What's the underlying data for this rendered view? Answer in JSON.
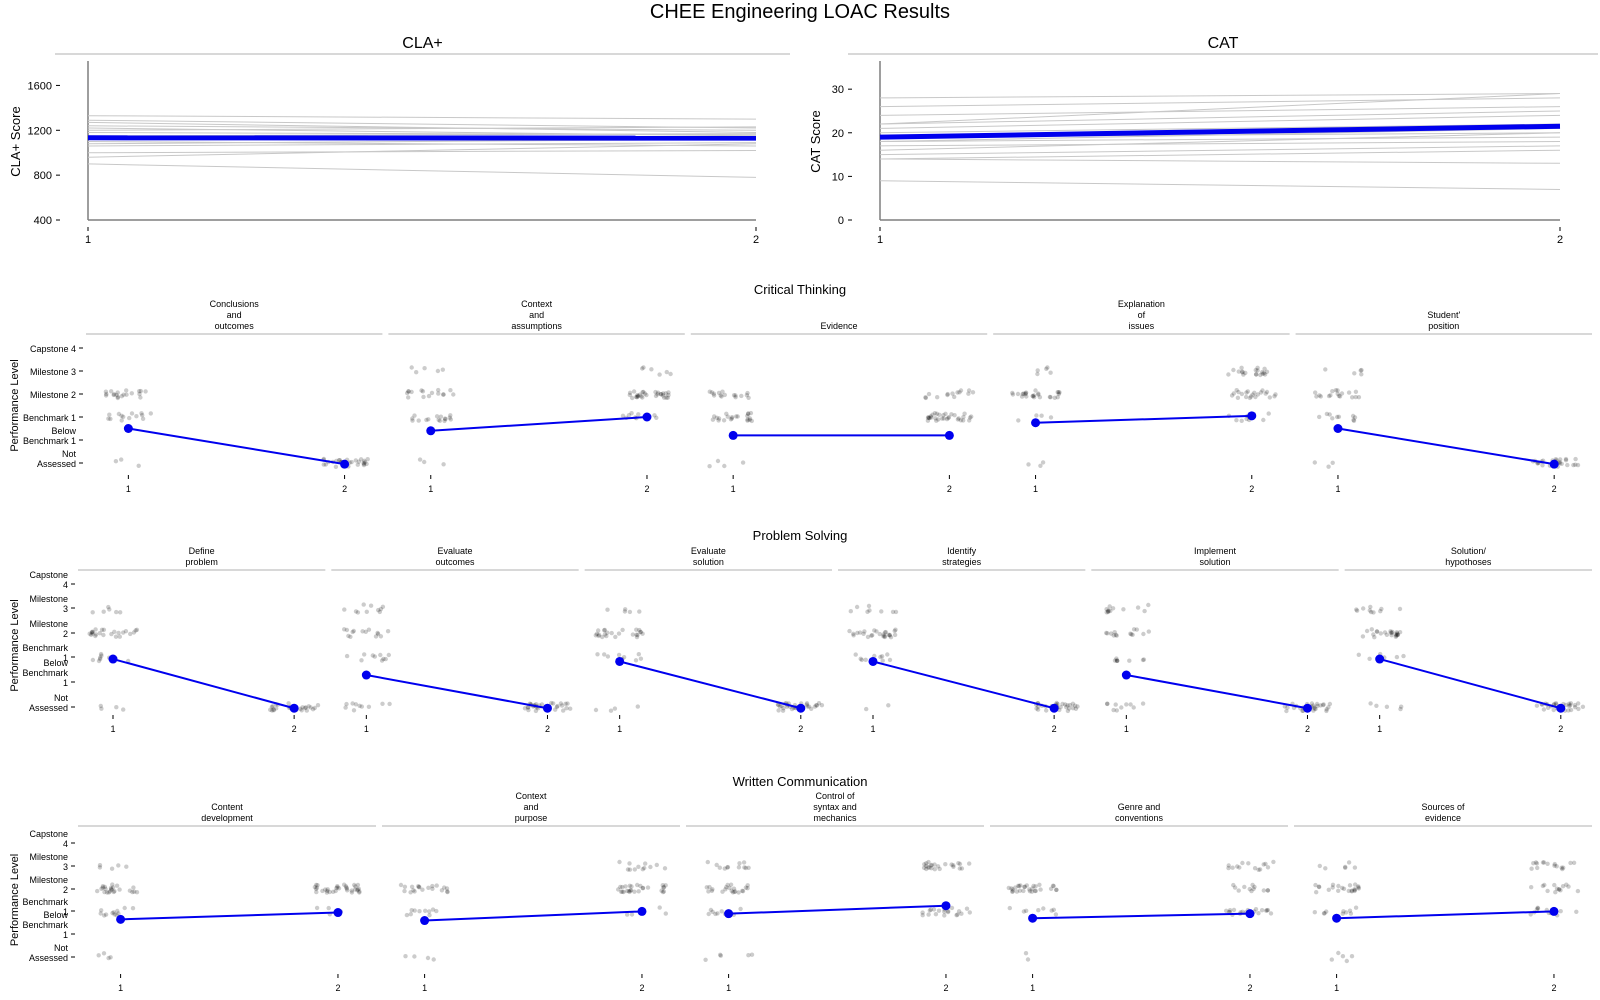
{
  "title": "CHEE Engineering LOAC Results",
  "colors": {
    "mean": "#0000ee",
    "individual": "#c8c8c8",
    "point": "#000000",
    "strip": "#b3b3b3",
    "axis": "#7f7f7f"
  },
  "chart_data": [
    {
      "type": "line",
      "title": "CLA+",
      "ylabel": "CLA+ Score",
      "x": [
        1,
        2
      ],
      "ylim": [
        400,
        1800
      ],
      "yticks": [
        400,
        800,
        1200,
        1600
      ],
      "series": [
        {
          "role": "mean",
          "values": [
            1133,
            1130
          ]
        },
        {
          "role": "individual",
          "lines": [
            [
              1330,
              1300
            ],
            [
              1290,
              1220
            ],
            [
              1270,
              1180
            ],
            [
              1240,
              1200
            ],
            [
              1220,
              1150
            ],
            [
              1200,
              1230
            ],
            [
              1180,
              1160
            ],
            [
              1150,
              1170
            ],
            [
              1120,
              1140
            ],
            [
              1100,
              1060
            ],
            [
              1080,
              1120
            ],
            [
              1060,
              1090
            ],
            [
              1000,
              1020
            ],
            [
              960,
              1080
            ],
            [
              900,
              780
            ]
          ]
        }
      ]
    },
    {
      "type": "line",
      "title": "CAT",
      "ylabel": "CAT Score",
      "x": [
        1,
        2
      ],
      "ylim": [
        0,
        36
      ],
      "yticks": [
        0,
        10,
        20,
        30
      ],
      "series": [
        {
          "role": "mean",
          "values": [
            19,
            21.5
          ]
        },
        {
          "role": "individual",
          "lines": [
            [
              28,
              29
            ],
            [
              26,
              28
            ],
            [
              24,
              26
            ],
            [
              22,
              29
            ],
            [
              22,
              25
            ],
            [
              21,
              24
            ],
            [
              20,
              22
            ],
            [
              19,
              20
            ],
            [
              18,
              19
            ],
            [
              18,
              21
            ],
            [
              17,
              18
            ],
            [
              16,
              20
            ],
            [
              15,
              17
            ],
            [
              14,
              13
            ],
            [
              14,
              16
            ],
            [
              9,
              7
            ]
          ]
        }
      ]
    },
    {
      "type": "scatter",
      "title": "Critical Thinking",
      "ylabel": "Performance Level",
      "x": [
        1,
        2
      ],
      "levels": [
        "Not Assessed",
        "Below Benchmark 1",
        "Benchmark 1",
        "Milestone 2",
        "Milestone 3",
        "Capstone 4"
      ],
      "ytick_labels": [
        [
          "Capstone 4"
        ],
        [
          "Milestone 3"
        ],
        [
          "Milestone 2"
        ],
        [
          "Benchmark 1"
        ],
        [
          "Below",
          "Benchmark 1"
        ],
        [
          "Not",
          "Assessed"
        ]
      ],
      "panels": [
        {
          "title": [
            "Conclusions",
            "and",
            "outcomes"
          ],
          "mean": [
            1.5,
            -0.05
          ],
          "counts": [
            {
              "na": 3,
              "b1": 14,
              "m2": 20,
              "m3": 0
            },
            {
              "na": 30,
              "b1": 0,
              "m2": 0,
              "m3": 0
            }
          ]
        },
        {
          "title": [
            "Context",
            "and",
            "assumptions"
          ],
          "mean": [
            1.4,
            2.0
          ],
          "counts": [
            {
              "na": 3,
              "b1": 16,
              "m2": 16,
              "m3": 5
            },
            {
              "na": 0,
              "b1": 10,
              "m2": 30,
              "m3": 6
            }
          ]
        },
        {
          "title": [
            "Evidence"
          ],
          "mean": [
            1.2,
            1.2
          ],
          "counts": [
            {
              "na": 4,
              "b1": 22,
              "m2": 16,
              "m3": 0
            },
            {
              "na": 0,
              "b1": 32,
              "m2": 14,
              "m3": 0
            }
          ]
        },
        {
          "title": [
            "Explanation",
            "of",
            "issues"
          ],
          "mean": [
            1.75,
            2.05
          ],
          "counts": [
            {
              "na": 3,
              "b1": 4,
              "m2": 26,
              "m3": 5
            },
            {
              "na": 0,
              "b1": 10,
              "m2": 22,
              "m3": 20
            }
          ]
        },
        {
          "title": [
            "Student'",
            "position"
          ],
          "mean": [
            1.5,
            -0.05
          ],
          "counts": [
            {
              "na": 3,
              "b1": 10,
              "m2": 18,
              "m3": 5
            },
            {
              "na": 30,
              "b1": 0,
              "m2": 0,
              "m3": 0
            }
          ]
        }
      ]
    },
    {
      "type": "scatter",
      "title": "Problem Solving",
      "ylabel": "Performance Level",
      "x": [
        1,
        2
      ],
      "levels": [
        "Not Assessed",
        "Below Benchmark 1",
        "Benchmark 1",
        "Milestone 2",
        "Milestone 3",
        "Capstone 4"
      ],
      "ytick_labels": [
        [
          "Capstone",
          "4"
        ],
        [
          "Milestone",
          "3"
        ],
        [
          "Milestone",
          "2"
        ],
        [
          "Benchmark",
          "1"
        ],
        [
          "Below",
          "Benchmark",
          "1"
        ],
        [
          "Not",
          "Assessed"
        ]
      ],
      "panels": [
        {
          "title": [
            "Define",
            "problem"
          ],
          "mean": [
            1.95,
            -0.05
          ],
          "counts": [
            {
              "na": 4,
              "b1": 8,
              "m2": 24,
              "m3": 6
            },
            {
              "na": 30,
              "b1": 0,
              "m2": 0,
              "m3": 0
            }
          ]
        },
        {
          "title": [
            "Evaluate",
            "outcomes"
          ],
          "mean": [
            1.3,
            -0.05
          ],
          "counts": [
            {
              "na": 10,
              "b1": 10,
              "m2": 14,
              "m3": 10
            },
            {
              "na": 30,
              "b1": 0,
              "m2": 0,
              "m3": 0
            }
          ]
        },
        {
          "title": [
            "Evaluate",
            "solution"
          ],
          "mean": [
            1.85,
            -0.05
          ],
          "counts": [
            {
              "na": 4,
              "b1": 10,
              "m2": 24,
              "m3": 5
            },
            {
              "na": 30,
              "b1": 0,
              "m2": 0,
              "m3": 0
            }
          ]
        },
        {
          "title": [
            "Identify",
            "strategies"
          ],
          "mean": [
            1.85,
            -0.05
          ],
          "counts": [
            {
              "na": 2,
              "b1": 10,
              "m2": 26,
              "m3": 8
            },
            {
              "na": 30,
              "b1": 0,
              "m2": 0,
              "m3": 0
            }
          ]
        },
        {
          "title": [
            "Implement",
            "solution"
          ],
          "mean": [
            1.3,
            -0.05
          ],
          "counts": [
            {
              "na": 10,
              "b1": 8,
              "m2": 14,
              "m3": 12
            },
            {
              "na": 30,
              "b1": 0,
              "m2": 0,
              "m3": 0
            }
          ]
        },
        {
          "title": [
            "Solution/",
            "hypothoses"
          ],
          "mean": [
            1.95,
            -0.05
          ],
          "counts": [
            {
              "na": 5,
              "b1": 6,
              "m2": 24,
              "m3": 10
            },
            {
              "na": 30,
              "b1": 0,
              "m2": 0,
              "m3": 0
            }
          ]
        }
      ]
    },
    {
      "type": "scatter",
      "title": "Written Communication",
      "ylabel": "Performance Level",
      "x": [
        1,
        2
      ],
      "levels": [
        "Not Assessed",
        "Below Benchmark 1",
        "Benchmark 1",
        "Milestone 2",
        "Milestone 3",
        "Capstone 4"
      ],
      "ytick_labels": [
        [
          "Capstone",
          "4"
        ],
        [
          "Milestone",
          "3"
        ],
        [
          "Milestone",
          "2"
        ],
        [
          "Benchmark",
          "1"
        ],
        [
          "Below",
          "Benchmark",
          "1"
        ],
        [
          "Not",
          "Assessed"
        ]
      ],
      "panels": [
        {
          "title": [
            "Content",
            "development"
          ],
          "mean": [
            1.65,
            1.95
          ],
          "counts": [
            {
              "na": 4,
              "b1": 12,
              "m2": 24,
              "m3": 5
            },
            {
              "na": 0,
              "b1": 4,
              "m2": 34,
              "m3": 0
            }
          ]
        },
        {
          "title": [
            "Context",
            "and",
            "purpose"
          ],
          "mean": [
            1.6,
            2.0
          ],
          "counts": [
            {
              "na": 4,
              "b1": 10,
              "m2": 20,
              "m3": 0
            },
            {
              "na": 0,
              "b1": 5,
              "m2": 28,
              "m3": 12
            }
          ]
        },
        {
          "title": [
            "Control of",
            "syntax and",
            "mechanics"
          ],
          "mean": [
            1.9,
            2.25
          ],
          "counts": [
            {
              "na": 5,
              "b1": 10,
              "m2": 22,
              "m3": 12
            },
            {
              "na": 0,
              "b1": 20,
              "m2": 0,
              "m3": 24
            }
          ]
        },
        {
          "title": [
            "Genre and",
            "conventions"
          ],
          "mean": [
            1.7,
            1.9
          ],
          "counts": [
            {
              "na": 2,
              "b1": 8,
              "m2": 30,
              "m3": 0
            },
            {
              "na": 0,
              "b1": 20,
              "m2": 12,
              "m3": 14
            }
          ]
        },
        {
          "title": [
            "Sources of",
            "evidence"
          ],
          "mean": [
            1.7,
            2.0
          ],
          "counts": [
            {
              "na": 5,
              "b1": 10,
              "m2": 22,
              "m3": 6
            },
            {
              "na": 0,
              "b1": 12,
              "m2": 14,
              "m3": 16
            }
          ]
        }
      ]
    }
  ]
}
